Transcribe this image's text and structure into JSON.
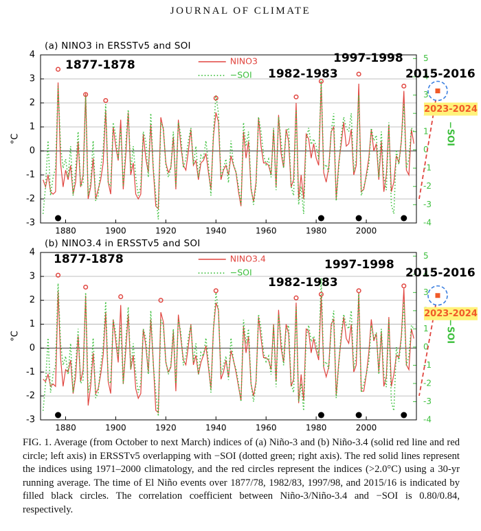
{
  "header": "JOURNAL OF CLIMATE",
  "chart_data": [
    {
      "type": "line",
      "title": "(a) NINO3 in ERSSTv5 and SOI",
      "ylabel": "°C",
      "y2label": "−SOI",
      "x": [
        1871,
        1872,
        1873,
        1874,
        1875,
        1876,
        1877,
        1878,
        1879,
        1880,
        1881,
        1882,
        1883,
        1884,
        1885,
        1886,
        1887,
        1888,
        1889,
        1890,
        1891,
        1892,
        1893,
        1894,
        1895,
        1896,
        1897,
        1898,
        1899,
        1900,
        1901,
        1902,
        1903,
        1904,
        1905,
        1906,
        1907,
        1908,
        1909,
        1910,
        1911,
        1912,
        1913,
        1914,
        1915,
        1916,
        1917,
        1918,
        1919,
        1920,
        1921,
        1922,
        1923,
        1924,
        1925,
        1926,
        1927,
        1928,
        1929,
        1930,
        1931,
        1932,
        1933,
        1934,
        1935,
        1936,
        1937,
        1938,
        1939,
        1940,
        1941,
        1942,
        1943,
        1944,
        1945,
        1946,
        1947,
        1948,
        1949,
        1950,
        1951,
        1952,
        1953,
        1954,
        1955,
        1956,
        1957,
        1958,
        1959,
        1960,
        1961,
        1962,
        1963,
        1964,
        1965,
        1966,
        1967,
        1968,
        1969,
        1970,
        1971,
        1972,
        1973,
        1974,
        1975,
        1976,
        1977,
        1978,
        1979,
        1980,
        1981,
        1982,
        1983,
        1984,
        1985,
        1986,
        1987,
        1988,
        1989,
        1990,
        1991,
        1992,
        1993,
        1994,
        1995,
        1996,
        1997,
        1998,
        1999,
        2000,
        2001,
        2002,
        2003,
        2004,
        2005,
        2006,
        2007,
        2008,
        2009,
        2010,
        2011,
        2012,
        2013,
        2014,
        2015,
        2016,
        2017,
        2018,
        2019
      ],
      "series": [
        {
          "name": "NINO3",
          "color": "#e0443e",
          "style": "solid",
          "values": [
            -1.2,
            -1.5,
            -1.0,
            -1.7,
            -1.8,
            -1.7,
            2.85,
            -0.5,
            -1.5,
            -0.8,
            -1.2,
            -0.6,
            -1.8,
            -1.3,
            0.4,
            -1.5,
            -1.0,
            2.4,
            -2.0,
            -1.5,
            -0.3,
            -2.0,
            -1.6,
            -1.2,
            -0.5,
            1.7,
            -1.3,
            -1.8,
            1.0,
            0.2,
            -0.4,
            1.3,
            -1.6,
            -0.2,
            1.6,
            -1.0,
            -0.5,
            -1.8,
            -2.0,
            -1.8,
            0.7,
            -0.3,
            -0.9,
            1.1,
            -0.8,
            -2.3,
            -2.4,
            1.4,
            0.9,
            -0.5,
            -0.9,
            -0.7,
            0.6,
            -1.6,
            1.3,
            0.2,
            -0.6,
            -0.8,
            0.0,
            0.9,
            -0.6,
            -0.4,
            -1.2,
            -0.5,
            -0.4,
            -0.1,
            -0.9,
            -1.6,
            0.6,
            1.6,
            1.2,
            -1.2,
            -0.8,
            -0.6,
            -1.0,
            -0.2,
            -0.6,
            -0.9,
            -1.7,
            -2.3,
            0.8,
            -0.3,
            0.4,
            -1.6,
            -2.1,
            -1.3,
            1.4,
            0.2,
            -0.5,
            -0.5,
            -0.6,
            -1.0,
            0.9,
            -1.5,
            1.5,
            -0.1,
            -0.7,
            0.9,
            0.4,
            -1.5,
            -1.2,
            2.0,
            -2.0,
            -1.0,
            -2.0,
            0.7,
            0.5,
            -0.3,
            0.3,
            -0.3,
            -0.6,
            2.8,
            -0.9,
            -1.3,
            -0.7,
            0.8,
            1.0,
            -2.0,
            -0.5,
            0.3,
            1.2,
            0.2,
            0.3,
            0.9,
            -1.0,
            -0.6,
            2.8,
            -1.7,
            -1.6,
            -1.0,
            -0.3,
            0.9,
            0.0,
            0.3,
            -1.2,
            0.4,
            -1.7,
            -1.0,
            1.1,
            -1.7,
            -1.3,
            -0.2,
            -0.5,
            0.4,
            2.5,
            -0.8,
            -1.0,
            0.9,
            0.3
          ]
        },
        {
          "name": "−SOI",
          "color": "#3cbf3c",
          "style": "dotted",
          "axis": "y2",
          "values": [
            -3.5,
            -2.0,
            0.5,
            -2.5,
            -1.5,
            -1.0,
            3.5,
            0.2,
            -1.0,
            -0.5,
            -1.5,
            0.2,
            -2.5,
            -1.0,
            1.0,
            -2.0,
            -1.8,
            3.0,
            -2.5,
            -1.8,
            0.5,
            -2.8,
            -2.5,
            -1.0,
            0.0,
            2.5,
            -1.8,
            -2.0,
            1.5,
            0.8,
            -0.5,
            1.2,
            -2.0,
            0.3,
            2.2,
            -1.2,
            0.2,
            -1.5,
            -2.5,
            -2.0,
            1.0,
            0.5,
            -1.5,
            2.0,
            -1.0,
            -2.5,
            -3.8,
            1.5,
            1.2,
            -0.8,
            -1.5,
            -1.0,
            1.0,
            -2.0,
            1.5,
            0.8,
            -1.0,
            -0.5,
            0.5,
            1.2,
            -0.8,
            0.2,
            -1.5,
            -0.3,
            -0.5,
            0.5,
            -0.8,
            -2.5,
            1.0,
            3.0,
            2.0,
            -1.5,
            -1.0,
            -0.5,
            -1.8,
            0.5,
            -0.8,
            -1.2,
            -2.0,
            -3.0,
            1.5,
            0.2,
            1.0,
            -2.0,
            -3.0,
            -2.0,
            1.8,
            1.0,
            -0.3,
            -0.8,
            -0.5,
            -1.5,
            1.2,
            -2.2,
            1.8,
            0.5,
            -1.0,
            1.0,
            1.2,
            -2.0,
            -2.5,
            2.2,
            -3.0,
            -2.0,
            -3.5,
            0.5,
            1.2,
            0.3,
            0.6,
            0.2,
            -0.5,
            3.8,
            -1.0,
            -0.8,
            -1.2,
            1.0,
            2.0,
            -2.8,
            -1.0,
            0.8,
            1.8,
            1.2,
            1.0,
            2.0,
            -1.2,
            -0.5,
            3.0,
            -2.5,
            -2.0,
            -1.5,
            -0.8,
            1.2,
            0.5,
            0.8,
            -1.5,
            1.0,
            -1.5,
            -2.2,
            1.5,
            -3.0,
            -3.5,
            0.0,
            -0.8,
            0.5,
            2.5,
            -1.0,
            -0.5,
            1.2,
            1.0
          ]
        }
      ],
      "circles": {
        "color": "#e0443e",
        "x": [
          1877,
          1888,
          1896,
          1940,
          1972,
          1982,
          1997,
          2015
        ],
        "values": [
          3.4,
          2.35,
          2.1,
          2.2,
          2.25,
          2.9,
          3.2,
          2.7
        ]
      },
      "events": {
        "color": "#000000",
        "x": [
          1877,
          1982,
          1997,
          2015
        ]
      },
      "annotations": [
        "1877-1878",
        "1982-1983",
        "1997-1998",
        "2015-2016"
      ],
      "highlight": {
        "label": "2023-2024",
        "value": 2.5
      },
      "xlim": [
        1870,
        2020
      ],
      "xticks": [
        1880,
        1900,
        1920,
        1940,
        1960,
        1980,
        2000
      ],
      "ylim": [
        -3,
        4
      ],
      "yticks": [
        -3,
        -2,
        -1,
        0,
        1,
        2,
        3,
        4
      ],
      "y2lim": [
        -4,
        5.2
      ],
      "y2ticks": [
        -4,
        -3,
        -2,
        -1,
        0,
        1,
        2,
        3,
        4,
        5
      ],
      "grid": true,
      "legend": "upper center"
    },
    {
      "type": "line",
      "title": "(b) NINO3.4 in ERSSTv5 and SOI",
      "ylabel": "°C",
      "y2label": "−SOI",
      "x": [
        1871,
        1872,
        1873,
        1874,
        1875,
        1876,
        1877,
        1878,
        1879,
        1880,
        1881,
        1882,
        1883,
        1884,
        1885,
        1886,
        1887,
        1888,
        1889,
        1890,
        1891,
        1892,
        1893,
        1894,
        1895,
        1896,
        1897,
        1898,
        1899,
        1900,
        1901,
        1902,
        1903,
        1904,
        1905,
        1906,
        1907,
        1908,
        1909,
        1910,
        1911,
        1912,
        1913,
        1914,
        1915,
        1916,
        1917,
        1918,
        1919,
        1920,
        1921,
        1922,
        1923,
        1924,
        1925,
        1926,
        1927,
        1928,
        1929,
        1930,
        1931,
        1932,
        1933,
        1934,
        1935,
        1936,
        1937,
        1938,
        1939,
        1940,
        1941,
        1942,
        1943,
        1944,
        1945,
        1946,
        1947,
        1948,
        1949,
        1950,
        1951,
        1952,
        1953,
        1954,
        1955,
        1956,
        1957,
        1958,
        1959,
        1960,
        1961,
        1962,
        1963,
        1964,
        1965,
        1966,
        1967,
        1968,
        1969,
        1970,
        1971,
        1972,
        1973,
        1974,
        1975,
        1976,
        1977,
        1978,
        1979,
        1980,
        1981,
        1982,
        1983,
        1984,
        1985,
        1986,
        1987,
        1988,
        1989,
        1990,
        1991,
        1992,
        1993,
        1994,
        1995,
        1996,
        1997,
        1998,
        1999,
        2000,
        2001,
        2002,
        2003,
        2004,
        2005,
        2006,
        2007,
        2008,
        2009,
        2010,
        2011,
        2012,
        2013,
        2014,
        2015,
        2016,
        2017,
        2018,
        2019
      ],
      "series": [
        {
          "name": "NINO3.4",
          "color": "#e0443e",
          "style": "solid",
          "values": [
            -1.3,
            -1.4,
            -1.1,
            -1.6,
            -1.5,
            -1.6,
            2.4,
            -0.4,
            -1.6,
            -0.9,
            -1.0,
            -0.5,
            -1.9,
            -1.2,
            0.5,
            -1.4,
            -0.9,
            2.2,
            -2.4,
            -1.6,
            -0.2,
            -1.9,
            -1.7,
            -1.1,
            -0.3,
            1.5,
            -1.4,
            -1.9,
            1.2,
            0.3,
            -0.6,
            1.8,
            -1.5,
            -0.1,
            1.4,
            -0.9,
            -0.3,
            -1.7,
            -2.1,
            -1.9,
            0.8,
            0.1,
            -1.0,
            1.2,
            -0.6,
            -2.6,
            -2.7,
            1.5,
            1.1,
            -0.6,
            -1.0,
            -0.8,
            0.7,
            -1.8,
            1.4,
            0.4,
            -0.5,
            -0.7,
            0.1,
            1.0,
            -0.7,
            -0.3,
            -1.1,
            -0.6,
            -0.3,
            0.1,
            -0.8,
            -1.7,
            0.8,
            1.9,
            1.6,
            -1.3,
            -1.0,
            -0.5,
            -1.2,
            -0.1,
            -0.5,
            -1.0,
            -1.6,
            -2.2,
            0.9,
            -0.2,
            0.5,
            -1.5,
            -2.0,
            -1.4,
            1.3,
            0.4,
            -0.4,
            -0.4,
            -0.5,
            -0.9,
            1.0,
            -1.4,
            1.6,
            0.0,
            -0.6,
            1.0,
            0.6,
            -1.6,
            -1.3,
            1.9,
            -2.3,
            -1.1,
            -2.2,
            0.8,
            0.7,
            -0.2,
            0.4,
            -0.1,
            -0.5,
            2.2,
            -0.8,
            -1.2,
            -0.8,
            1.0,
            1.2,
            -2.0,
            -0.6,
            0.4,
            1.3,
            0.4,
            0.2,
            1.0,
            -1.0,
            -0.7,
            2.3,
            -1.8,
            -1.8,
            -1.1,
            -0.2,
            1.2,
            0.3,
            0.6,
            -1.0,
            0.7,
            -1.6,
            -1.2,
            1.3,
            -1.6,
            -1.1,
            -0.3,
            -0.4,
            0.5,
            2.5,
            -0.7,
            -0.9,
            0.8,
            0.4
          ]
        },
        {
          "name": "−SOI",
          "color": "#3cbf3c",
          "style": "dotted",
          "axis": "y2",
          "values": [
            -3.5,
            -2.0,
            0.5,
            -2.5,
            -1.5,
            -1.0,
            3.5,
            0.2,
            -1.0,
            -0.5,
            -1.5,
            0.2,
            -2.5,
            -1.0,
            1.0,
            -2.0,
            -1.8,
            3.0,
            -2.5,
            -1.8,
            0.5,
            -2.8,
            -2.5,
            -1.0,
            0.0,
            2.5,
            -1.8,
            -2.0,
            1.5,
            0.8,
            -0.5,
            1.2,
            -2.0,
            0.3,
            2.2,
            -1.2,
            0.2,
            -1.5,
            -2.5,
            -2.0,
            1.0,
            0.5,
            -1.5,
            2.0,
            -1.0,
            -2.5,
            -3.8,
            1.5,
            1.2,
            -0.8,
            -1.5,
            -1.0,
            1.0,
            -2.0,
            1.5,
            0.8,
            -1.0,
            -0.5,
            0.5,
            1.2,
            -0.8,
            0.2,
            -1.5,
            -0.3,
            -0.5,
            0.5,
            -0.8,
            -2.5,
            1.0,
            3.0,
            2.0,
            -1.5,
            -1.0,
            -0.5,
            -1.8,
            0.5,
            -0.8,
            -1.2,
            -2.0,
            -3.0,
            1.5,
            0.2,
            1.0,
            -2.0,
            -3.0,
            -2.0,
            1.8,
            1.0,
            -0.3,
            -0.8,
            -0.5,
            -1.5,
            1.2,
            -2.2,
            1.8,
            0.5,
            -1.0,
            1.0,
            1.2,
            -2.0,
            -2.5,
            2.2,
            -3.0,
            -2.0,
            -3.5,
            0.5,
            1.2,
            0.3,
            0.6,
            0.2,
            -0.5,
            3.8,
            -1.0,
            -0.8,
            -1.2,
            1.0,
            2.0,
            -2.8,
            -1.0,
            0.8,
            1.8,
            1.2,
            1.0,
            2.0,
            -1.2,
            -0.5,
            3.0,
            -2.5,
            -2.0,
            -1.5,
            -0.8,
            1.2,
            0.5,
            0.8,
            -1.5,
            1.0,
            -1.5,
            -2.2,
            1.5,
            -3.0,
            -3.5,
            0.0,
            -0.8,
            0.5,
            2.5,
            -1.0,
            -0.5,
            1.2,
            1.0
          ]
        }
      ],
      "circles": {
        "color": "#e0443e",
        "x": [
          1877,
          1888,
          1902,
          1918,
          1940,
          1972,
          1982,
          1997,
          2015
        ],
        "values": [
          3.05,
          2.55,
          2.15,
          2.0,
          2.4,
          2.1,
          2.25,
          2.4,
          2.6
        ]
      },
      "events": {
        "color": "#000000",
        "x": [
          1877,
          1982,
          1997,
          2015
        ]
      },
      "annotations": [
        "1877-1878",
        "1982-1983",
        "1997-1998",
        "2015-2016"
      ],
      "highlight": {
        "label": "2023-2024",
        "value": 2.2
      },
      "xlim": [
        1870,
        2020
      ],
      "xticks": [
        1880,
        1900,
        1920,
        1940,
        1960,
        1980,
        2000
      ],
      "ylim": [
        -3,
        4
      ],
      "yticks": [
        -3,
        -2,
        -1,
        0,
        1,
        2,
        3,
        4
      ],
      "y2lim": [
        -4,
        5.2
      ],
      "y2ticks": [
        -4,
        -3,
        -2,
        -1,
        0,
        1,
        2,
        3,
        4,
        5
      ],
      "grid": true,
      "legend": "upper center"
    }
  ],
  "caption": "FIG. 1. Average (from October to next March) indices of (a) Niño-3 and (b) Niño-3.4 (solid red line and red circle; left axis) in ERSSTv5 overlapping with −SOI (dotted green; right axis). The red solid lines represent the indices using 1971–2000 climatology, and the red circles represent the indices (>2.0°C) using a 30-yr running average. The time of El Niño events over 1877/78, 1982/83, 1997/98, and 2015/16 is indicated by filled black circles. The correlation coefficient between Niño-3/Niño-3.4 and −SOI is 0.80/0.84, respectively."
}
